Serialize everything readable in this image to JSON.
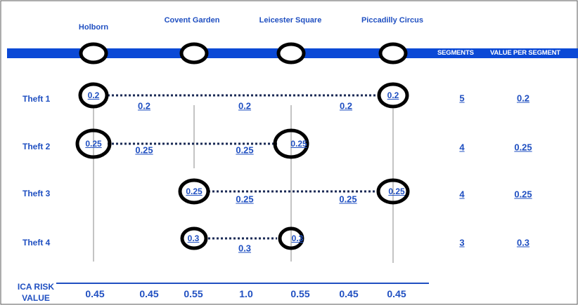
{
  "stations": [
    "Holborn",
    "Covent Garden",
    "Leicester Square",
    "Piccadilly Circus"
  ],
  "table_headers": {
    "segments": "SEGMENTS",
    "value_per_segment": "VALUE PER SEGMENT"
  },
  "thefts": [
    {
      "label": "Theft 1",
      "from": 0,
      "to": 3,
      "endpoint_value": "0.2",
      "segment_values": [
        "0.2",
        "0.2",
        "0.2"
      ],
      "segments": "5",
      "value_per_segment": "0.2"
    },
    {
      "label": "Theft 2",
      "from": 0,
      "to": 2,
      "endpoint_value": "0.25",
      "segment_values": [
        "0.25",
        "0.25"
      ],
      "segments": "4",
      "value_per_segment": "0.25"
    },
    {
      "label": "Theft 3",
      "from": 1,
      "to": 3,
      "endpoint_value": "0.25",
      "segment_values": [
        "0.25",
        "0.25"
      ],
      "segments": "4",
      "value_per_segment": "0.25"
    },
    {
      "label": "Theft 4",
      "from": 1,
      "to": 2,
      "endpoint_value": "0.3",
      "segment_values": [
        "0.3"
      ],
      "segments": "3",
      "value_per_segment": "0.3"
    }
  ],
  "ica_risk": {
    "label": "ICA RISK VALUE",
    "values": [
      "0.45",
      "0.45",
      "0.55",
      "1.0",
      "0.55",
      "0.45",
      "0.45"
    ]
  },
  "colors": {
    "accent": "#1f4fc1",
    "line_bar": "#0b49d6",
    "dotted": "#1a2a55",
    "ring": "#000000",
    "vertical_line": "#888888"
  }
}
